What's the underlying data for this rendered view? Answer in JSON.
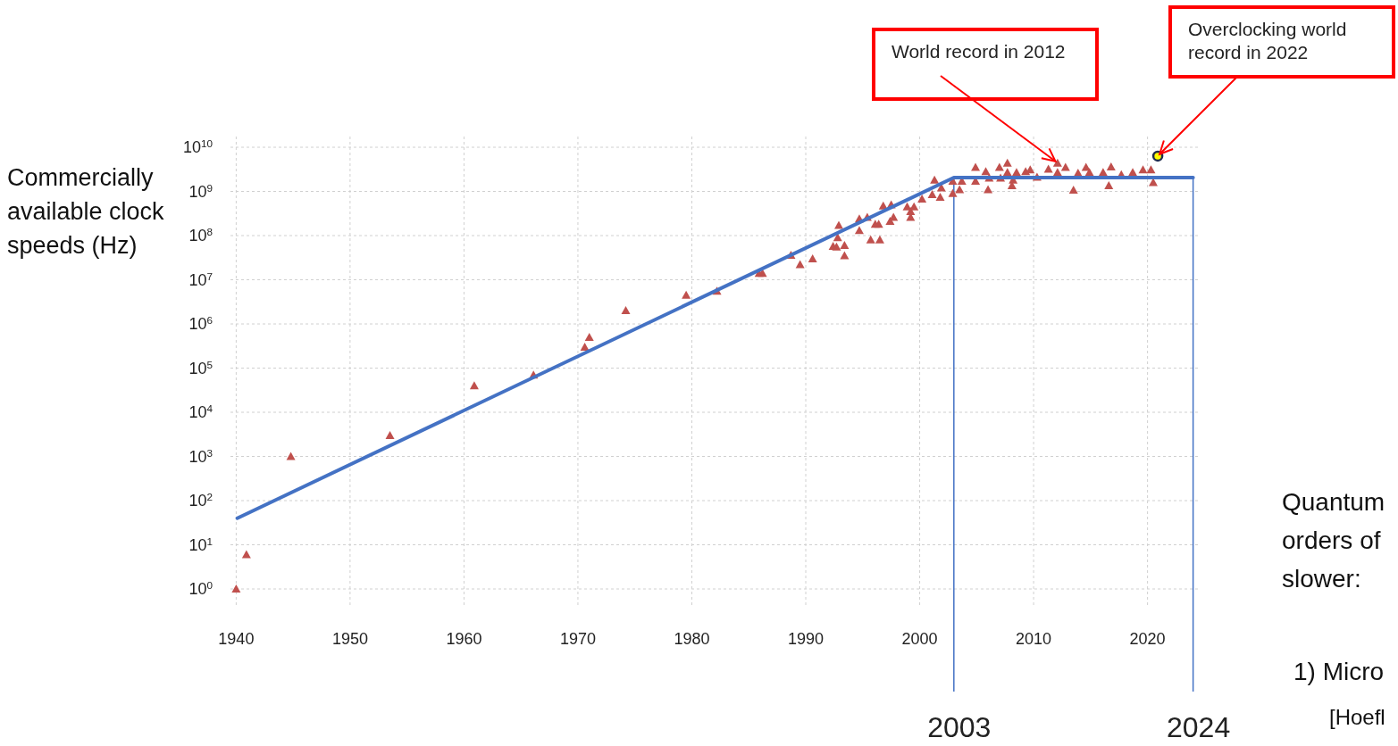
{
  "chart_data": {
    "type": "scatter",
    "ylabel": "Commercially available clock speeds (Hz)",
    "log": "y",
    "grid": true,
    "xlim": [
      1939.5,
      2024.5
    ],
    "xticks": [
      1940,
      1950,
      1960,
      1970,
      1980,
      1990,
      2000,
      2010,
      2020
    ],
    "ylim": [
      1,
      10000000000
    ],
    "yticks": [
      {
        "value": 1,
        "label": "10$^{0}$"
      },
      {
        "value": 10,
        "label": "10$^{1}$"
      },
      {
        "value": 100,
        "label": "10$^{2}$"
      },
      {
        "value": 1000,
        "label": "10$^{3}$"
      },
      {
        "value": 10000,
        "label": "10$^{4}$"
      },
      {
        "value": 100000,
        "label": "10$^{5}$"
      },
      {
        "value": 1000000,
        "label": "10$^{6}$"
      },
      {
        "value": 10000000,
        "label": "10$^{7}$"
      },
      {
        "value": 100000000,
        "label": "10$^{8}$"
      },
      {
        "value": 1000000000,
        "label": "10$^{9}$"
      },
      {
        "value": 10000000000,
        "label": "10$^{10}$"
      }
    ],
    "marker": "triangle",
    "series": [
      {
        "color": "#c0504d",
        "x": [
          1940,
          1940.9,
          1944.8,
          1953.5,
          1960.9,
          1966.1,
          1970.6,
          1971,
          1974.2,
          1979.5,
          1982.2,
          1985.9,
          1986.2,
          1988.7,
          1989.5,
          1990.6,
          1992.4,
          1992.7,
          1992.8,
          1992.9,
          1993.4,
          1993.4,
          1994.7,
          1994.7,
          1995.4,
          1995.7,
          1996.1,
          1996.4,
          1996.5,
          1996.8,
          1997.4,
          1997.5,
          1997.7,
          1998.9,
          1999.2,
          1999.2,
          1999.5,
          2000.2,
          2001.1,
          2001.3,
          2001.8,
          2001.9,
          2002.9,
          2002.9,
          2003.5,
          2003.7,
          2004.9,
          2004.9,
          2005.8,
          2006,
          2006.1,
          2007,
          2007.1,
          2007.7,
          2007.7,
          2008.1,
          2008.2,
          2008.5,
          2009.3,
          2009.7,
          2010.3,
          2011.3,
          2012.1,
          2012.1,
          2012.8,
          2013.5,
          2013.9,
          2014.6,
          2014.9,
          2016.1,
          2016.6,
          2016.8,
          2017.7,
          2018.7,
          2019.6,
          2020.3,
          2020.5
        ],
        "values": [
          1,
          6,
          1000,
          3000,
          40000,
          70000,
          300000,
          500000,
          2000000,
          4500000,
          5500000,
          14000000,
          14000000,
          36000000,
          22000000,
          30000000,
          57000000,
          55000000,
          90000000,
          170000000,
          60000000,
          35000000,
          240000000,
          130000000,
          260000000,
          80000000,
          180000000,
          180000000,
          80000000,
          470000000,
          210000000,
          500000000,
          260000000,
          450000000,
          260000000,
          350000000,
          450000000,
          670000000,
          850000000,
          1800000000,
          740000000,
          1200000000,
          1700000000,
          900000000,
          1100000000,
          1700000000,
          3500000000,
          1700000000,
          2800000000,
          1100000000,
          2000000000,
          3500000000,
          2000000000,
          4400000000,
          2700000000,
          1350000000,
          1800000000,
          2700000000,
          2800000000,
          3100000000,
          2100000000,
          3200000000,
          2700000000,
          4400000000,
          3500000000,
          1070000000,
          2600000000,
          3500000000,
          2700000000,
          2700000000,
          1350000000,
          3600000000,
          2400000000,
          2700000000,
          3100000000,
          3100000000,
          1600000000
        ]
      },
      {
        "color": "#ffff00",
        "marker": "circle",
        "x": [
          2020.9
        ],
        "values": [
          6300000000
        ]
      },
      {
        "type": "line",
        "color": "#4472c4",
        "marker": "none",
        "line_style": "solid",
        "x": [
          1940.1,
          2003,
          2024
        ],
        "values": [
          40,
          2050000000,
          2050000000
        ]
      }
    ],
    "ref_lines": [
      {
        "axis": "x",
        "value": 2003,
        "label": "2003",
        "color": "#4472c4"
      },
      {
        "axis": "x",
        "value": 2024,
        "label": "2024",
        "color": "#4472c4"
      }
    ],
    "annotations": [
      {
        "text": "World record in 2012",
        "x": 2012.1,
        "y": 4400000000
      },
      {
        "text": "Overclocking world record in 2022",
        "x": 2020.9,
        "y": 6300000000
      },
      "Quantum",
      "orders of",
      "slower:",
      "1) Micro",
      "[Hoefl"
    ]
  }
}
